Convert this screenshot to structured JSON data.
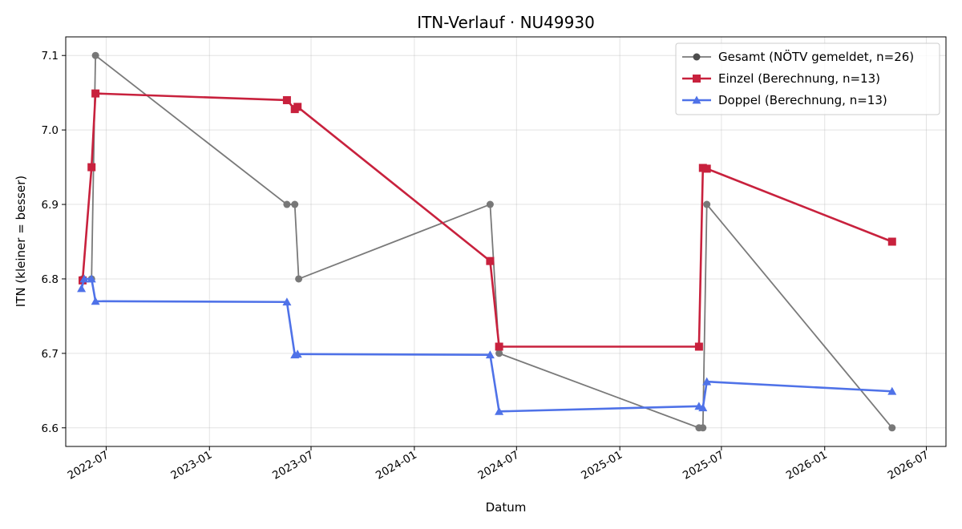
{
  "chart_data": {
    "type": "line",
    "title": "ITN-Verlauf · NU49930",
    "xlabel": "Datum",
    "ylabel": "ITN  (kleiner = besser)",
    "x_axis_type": "date",
    "xlim": [
      "2022-04-20",
      "2026-08-05"
    ],
    "ylim": [
      6.575,
      7.125
    ],
    "x_ticks": [
      "2022-07-01",
      "2023-01-01",
      "2023-07-01",
      "2024-01-01",
      "2024-07-01",
      "2025-01-01",
      "2025-07-01",
      "2026-01-01",
      "2026-07-01"
    ],
    "x_tick_labels": [
      "2022-07",
      "2023-01",
      "2023-07",
      "2024-01",
      "2024-07",
      "2025-01",
      "2025-07",
      "2026-01",
      "2026-07"
    ],
    "y_ticks": [
      6.6,
      6.7,
      6.8,
      6.9,
      7.0,
      7.1
    ],
    "y_tick_labels": [
      "6.6",
      "6.7",
      "6.8",
      "6.9",
      "7.0",
      "7.1"
    ],
    "grid": true,
    "legend_position": "top-right",
    "series": [
      {
        "name": "Gesamt (NÖTV gemeldet, n=26)",
        "color": "#4d4d4d",
        "marker": "circle",
        "points": [
          {
            "x": "2022-05-20",
            "y": 6.8
          },
          {
            "x": "2022-06-05",
            "y": 6.8
          },
          {
            "x": "2022-06-12",
            "y": 7.1
          },
          {
            "x": "2023-05-19",
            "y": 6.9
          },
          {
            "x": "2023-06-02",
            "y": 6.9
          },
          {
            "x": "2023-06-09",
            "y": 6.8
          },
          {
            "x": "2024-05-15",
            "y": 6.9
          },
          {
            "x": "2024-05-31",
            "y": 6.7
          },
          {
            "x": "2025-05-22",
            "y": 6.6
          },
          {
            "x": "2025-05-29",
            "y": 6.6
          },
          {
            "x": "2025-06-05",
            "y": 6.9
          },
          {
            "x": "2026-05-01",
            "y": 6.6
          }
        ]
      },
      {
        "name": "Einzel (Berechnung, n=13)",
        "color": "#c8213d",
        "marker": "square",
        "points": [
          {
            "x": "2022-05-20",
            "y": 6.798
          },
          {
            "x": "2022-06-05",
            "y": 6.95
          },
          {
            "x": "2022-06-12",
            "y": 7.049
          },
          {
            "x": "2023-05-19",
            "y": 7.04
          },
          {
            "x": "2023-06-02",
            "y": 7.028
          },
          {
            "x": "2023-06-07",
            "y": 7.031
          },
          {
            "x": "2024-05-15",
            "y": 6.824
          },
          {
            "x": "2024-05-31",
            "y": 6.709
          },
          {
            "x": "2025-05-22",
            "y": 6.709
          },
          {
            "x": "2025-05-29",
            "y": 6.949
          },
          {
            "x": "2025-06-05",
            "y": 6.948
          },
          {
            "x": "2026-05-01",
            "y": 6.85
          }
        ]
      },
      {
        "name": "Doppel (Berechnung, n=13)",
        "color": "#4f72e8",
        "marker": "triangle",
        "points": [
          {
            "x": "2022-05-18",
            "y": 6.787
          },
          {
            "x": "2022-05-23",
            "y": 6.8
          },
          {
            "x": "2022-06-05",
            "y": 6.8
          },
          {
            "x": "2022-06-12",
            "y": 6.77
          },
          {
            "x": "2023-05-19",
            "y": 6.769
          },
          {
            "x": "2023-06-02",
            "y": 6.698
          },
          {
            "x": "2023-06-07",
            "y": 6.699
          },
          {
            "x": "2024-05-15",
            "y": 6.698
          },
          {
            "x": "2024-05-31",
            "y": 6.622
          },
          {
            "x": "2025-05-22",
            "y": 6.629
          },
          {
            "x": "2025-05-29",
            "y": 6.627
          },
          {
            "x": "2025-06-05",
            "y": 6.662
          },
          {
            "x": "2026-05-01",
            "y": 6.649
          }
        ]
      }
    ]
  }
}
